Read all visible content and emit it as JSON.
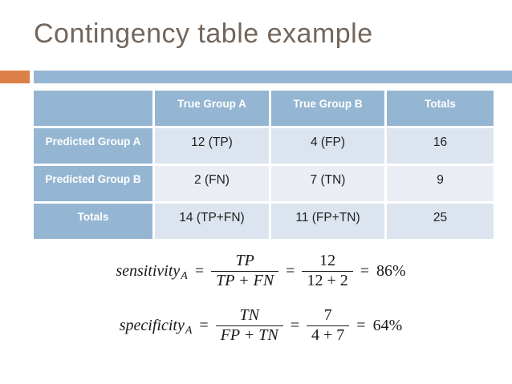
{
  "slide": {
    "title": "Contingency table example",
    "colors": {
      "accent_orange": "#DD8047",
      "accent_blue": "#94B6D2",
      "title_text": "#73665C",
      "band_dark": "#DCE5EF",
      "band_light": "#EAEEF4",
      "cell_text": "#1F1F1F",
      "header_text": "#FFFFFF"
    }
  },
  "table": {
    "columns": [
      "",
      "True Group A",
      "True Group B",
      "Totals"
    ],
    "rows": [
      {
        "label": "Predicted Group A",
        "cells": [
          "12 (TP)",
          "4 (FP)",
          "16"
        ]
      },
      {
        "label": "Predicted Group B",
        "cells": [
          "2 (FN)",
          "7 (TN)",
          "9"
        ]
      },
      {
        "label": "Totals",
        "cells": [
          "14 (TP+FN)",
          "11 (FP+TN)",
          "25"
        ]
      }
    ]
  },
  "math": {
    "equals": "="
  },
  "formulas": [
    {
      "name": "sensitivity",
      "subscript": "A",
      "symbolic": {
        "numerator": "TP",
        "denominator": "TP + FN"
      },
      "numeric": {
        "numerator": "12",
        "denominator": "12 + 2"
      },
      "result": "86%"
    },
    {
      "name": "specificity",
      "subscript": "A",
      "symbolic": {
        "numerator": "TN",
        "denominator": "FP + TN"
      },
      "numeric": {
        "numerator": "7",
        "denominator": "4 + 7"
      },
      "result": "64%"
    }
  ]
}
